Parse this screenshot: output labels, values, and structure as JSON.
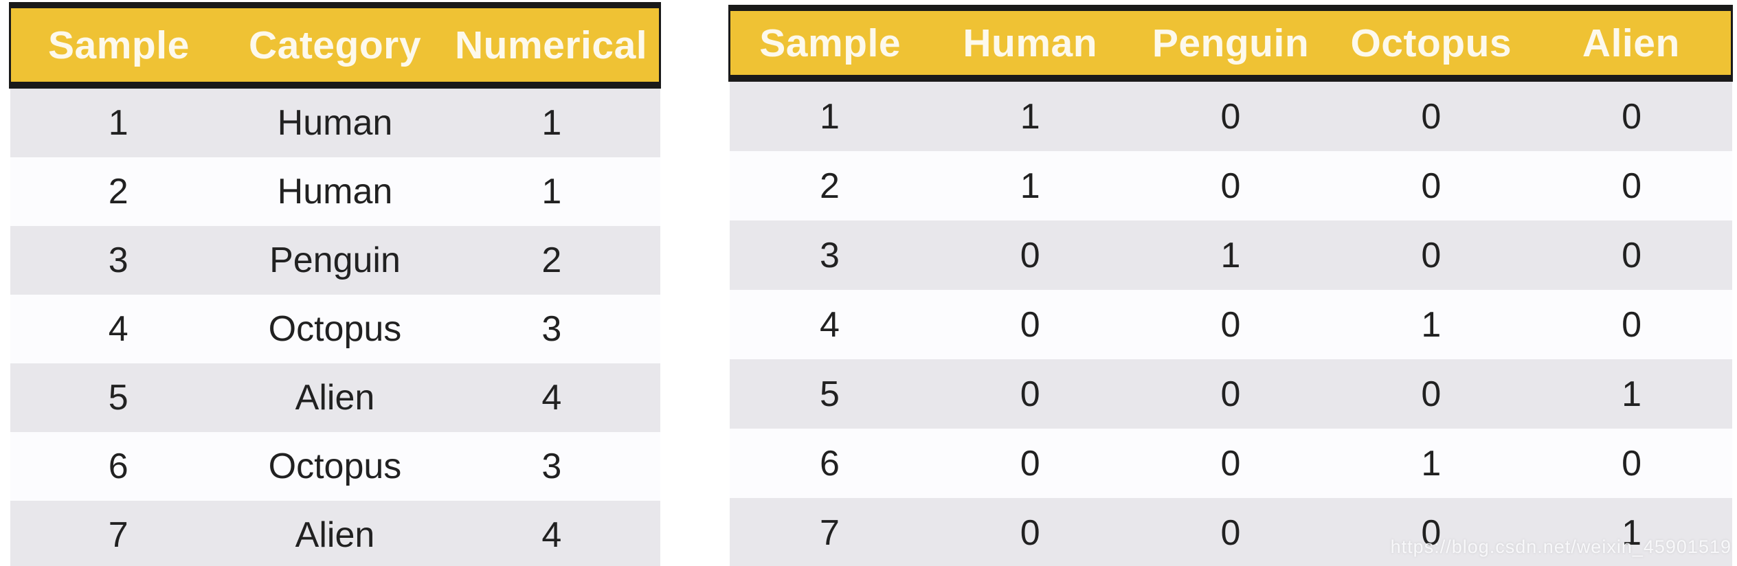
{
  "colors": {
    "header_bg": "#efc234",
    "header_text": "#fdf9ec",
    "border_dark": "#1a1a1a",
    "row_alt": "#e8e7eb",
    "row_base": "#fcfcfe",
    "body_text": "#212121",
    "watermark": "rgba(252,252,254,0.88)"
  },
  "left_table": {
    "headers": [
      "Sample",
      "Category",
      "Numerical"
    ],
    "rows": [
      [
        "1",
        "Human",
        "1"
      ],
      [
        "2",
        "Human",
        "1"
      ],
      [
        "3",
        "Penguin",
        "2"
      ],
      [
        "4",
        "Octopus",
        "3"
      ],
      [
        "5",
        "Alien",
        "4"
      ],
      [
        "6",
        "Octopus",
        "3"
      ],
      [
        "7",
        "Alien",
        "4"
      ]
    ]
  },
  "right_table": {
    "headers": [
      "Sample",
      "Human",
      "Penguin",
      "Octopus",
      "Alien"
    ],
    "rows": [
      [
        "1",
        "1",
        "0",
        "0",
        "0"
      ],
      [
        "2",
        "1",
        "0",
        "0",
        "0"
      ],
      [
        "3",
        "0",
        "1",
        "0",
        "0"
      ],
      [
        "4",
        "0",
        "0",
        "1",
        "0"
      ],
      [
        "5",
        "0",
        "0",
        "0",
        "1"
      ],
      [
        "6",
        "0",
        "0",
        "1",
        "0"
      ],
      [
        "7",
        "0",
        "0",
        "0",
        "1"
      ]
    ]
  },
  "watermark": {
    "text": "https://blog.csdn.net/weixin_45901519"
  },
  "chart_data": [
    {
      "type": "table",
      "columns": [
        "Sample",
        "Category",
        "Numerical"
      ],
      "rows": [
        [
          1,
          "Human",
          1
        ],
        [
          2,
          "Human",
          1
        ],
        [
          3,
          "Penguin",
          2
        ],
        [
          4,
          "Octopus",
          3
        ],
        [
          5,
          "Alien",
          4
        ],
        [
          6,
          "Octopus",
          3
        ],
        [
          7,
          "Alien",
          4
        ]
      ]
    },
    {
      "type": "table",
      "columns": [
        "Sample",
        "Human",
        "Penguin",
        "Octopus",
        "Alien"
      ],
      "rows": [
        [
          1,
          1,
          0,
          0,
          0
        ],
        [
          2,
          1,
          0,
          0,
          0
        ],
        [
          3,
          0,
          1,
          0,
          0
        ],
        [
          4,
          0,
          0,
          1,
          0
        ],
        [
          5,
          0,
          0,
          0,
          1
        ],
        [
          6,
          0,
          0,
          1,
          0
        ],
        [
          7,
          0,
          0,
          0,
          1
        ]
      ]
    }
  ]
}
